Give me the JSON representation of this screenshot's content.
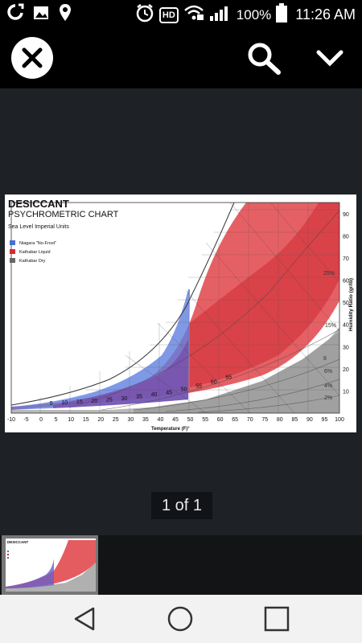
{
  "status_bar": {
    "battery_percent": "100%",
    "time": "11:26 AM",
    "hd_label": "HD"
  },
  "viewer": {
    "page_counter": "1 of 1"
  },
  "chart": {
    "title": "DESICCANT",
    "subtitle": "PSYCHROMETRIC CHART",
    "subtitle2": "Sea Level Imperial Units",
    "xlabel": "Temperature (F)°",
    "ylabel": "Humidity Ratio (gr/lb)",
    "legend": [
      {
        "label": "Niagara \"No-Frost\"",
        "color": "#4a6fd1"
      },
      {
        "label": "Kathabar Liquid",
        "color": "#d92a30"
      },
      {
        "label": "Kathabar Dry",
        "color": "#666666"
      }
    ]
  },
  "chart_data": {
    "type": "area",
    "title": "DESICCANT PSYCHROMETRIC CHART",
    "x_ticks": [
      -10,
      -5,
      0,
      5,
      10,
      15,
      20,
      25,
      30,
      35,
      40,
      45,
      50,
      55,
      60,
      65,
      70,
      75,
      80,
      85,
      90,
      95,
      100
    ],
    "y_ticks": [
      10,
      20,
      30,
      40,
      50,
      60,
      70,
      80,
      90
    ],
    "saturation_labels": [
      5,
      10,
      15,
      20,
      25,
      30,
      35,
      40,
      45,
      50,
      55,
      60,
      65
    ],
    "rh_labels": [
      "15%",
      "8",
      "6%",
      "4%",
      "2%",
      "25%"
    ],
    "xlim": [
      -10,
      100
    ],
    "ylim": [
      0,
      95
    ],
    "series": [
      {
        "name": "Niagara \"No-Frost\"",
        "color": "#4a6fd1"
      },
      {
        "name": "Kathabar Liquid",
        "color": "#d92a30"
      },
      {
        "name": "Kathabar Dry",
        "color": "#666666"
      }
    ]
  }
}
